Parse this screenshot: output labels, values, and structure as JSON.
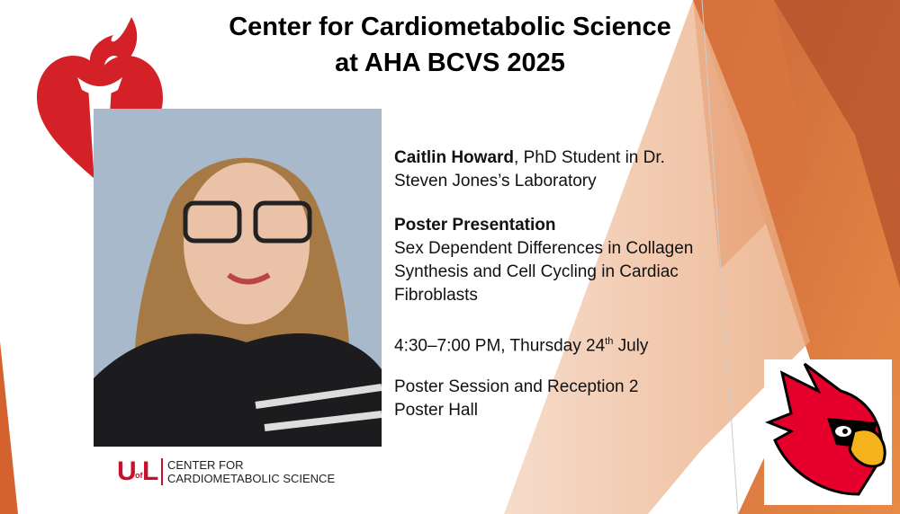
{
  "header": {
    "title_lines": [
      "Center for Cardiometabolic Science",
      "at AHA BCVS 2025"
    ]
  },
  "presenter": {
    "name": "Caitlin Howard",
    "role_lines": [
      ", PhD Student in Dr.",
      "Steven Jones’s Laboratory"
    ]
  },
  "presentation": {
    "heading": "Poster Presentation",
    "title_lines": [
      "Sex Dependent Differences in Collagen",
      "Synthesis and Cell Cycling in Cardiac",
      "Fibroblasts"
    ]
  },
  "time": {
    "before": "4:30–7:00 PM, Thursday 24",
    "superscript": "th",
    "after": " July"
  },
  "location_lines": [
    "Poster Session and Reception 2",
    "Poster Hall"
  ],
  "logo": {
    "mark_u": "U",
    "mark_of": "of",
    "mark_l": "L",
    "lines": [
      "CENTER FOR",
      "CARDIOMETABOLIC SCIENCE"
    ]
  }
}
